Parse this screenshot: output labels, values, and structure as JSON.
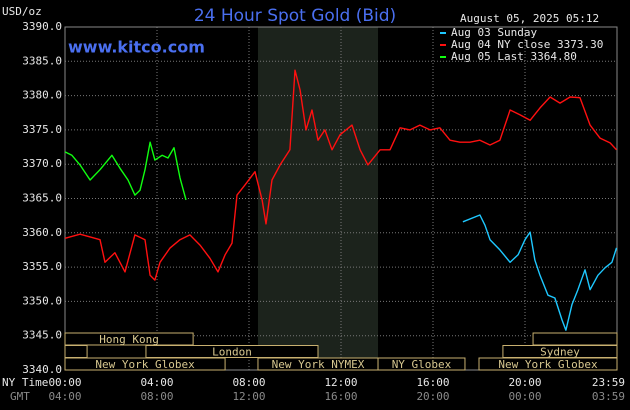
{
  "chart_data": {
    "type": "line",
    "title": "24 Hour Spot Gold (Bid)",
    "timestamp": "August 05, 2025 05:12",
    "watermark": "www.kitco.com",
    "y_label": "USD/oz",
    "x_label": "NY Time",
    "x2_label": "GMT",
    "grid": true,
    "legend": "top-right",
    "xlim": [
      0,
      24
    ],
    "ylim": [
      3340,
      3390
    ],
    "yticks": [
      {
        "value": 3340,
        "label": "3340.0"
      },
      {
        "value": 3345,
        "label": "3345.0"
      },
      {
        "value": 3350,
        "label": "3350.0"
      },
      {
        "value": 3355,
        "label": "3355.0"
      },
      {
        "value": 3360,
        "label": "3360.0"
      },
      {
        "value": 3365,
        "label": "3365.0"
      },
      {
        "value": 3370,
        "label": "3370.0"
      },
      {
        "value": 3375,
        "label": "3375.0"
      },
      {
        "value": 3380,
        "label": "3380.0"
      },
      {
        "value": 3385,
        "label": "3385.0"
      },
      {
        "value": 3390,
        "label": "3390.0"
      }
    ],
    "xticks": [
      {
        "value": 0,
        "label": "00:00"
      },
      {
        "value": 4,
        "label": "04:00"
      },
      {
        "value": 8,
        "label": "08:00"
      },
      {
        "value": 12,
        "label": "12:00"
      },
      {
        "value": 16,
        "label": "16:00"
      },
      {
        "value": 20,
        "label": "20:00"
      },
      {
        "value": 24,
        "label": "23:59"
      }
    ],
    "x2ticks": [
      {
        "value": 0,
        "label": "04:00"
      },
      {
        "value": 4,
        "label": "08:00"
      },
      {
        "value": 8,
        "label": "12:00"
      },
      {
        "value": 12,
        "label": "16:00"
      },
      {
        "value": 16,
        "label": "20:00"
      },
      {
        "value": 20,
        "label": "00:00"
      },
      {
        "value": 24,
        "label": "03:59"
      }
    ],
    "sessions": [
      {
        "label": "Hong Kong",
        "start": 0,
        "end": 5.57
      },
      {
        "label": null,
        "start": 20.35,
        "end": 24
      },
      {
        "label": null,
        "start": 0,
        "end": 0.96
      },
      {
        "label": "London",
        "start": 3.52,
        "end": 11.0
      },
      {
        "label": "Sydney",
        "start": 19.04,
        "end": 24
      },
      {
        "label": "New York Globex",
        "start": 0,
        "end": 6.96
      },
      {
        "label": "New York NYMEX",
        "start": 8.39,
        "end": 13.61
      },
      {
        "label": "NY Globex",
        "start": 13.61,
        "end": 17.39
      },
      {
        "label": "New York Globex",
        "start": 18.0,
        "end": 24
      }
    ],
    "series": [
      {
        "name": "Aug 03 Sunday",
        "color": "#1ec8ff",
        "x": [
          17.3,
          18.04,
          18.26,
          18.48,
          18.91,
          19.35,
          19.7,
          20.0,
          20.22,
          20.43,
          20.65,
          21.0,
          21.3,
          21.61,
          21.78,
          22.04,
          22.3,
          22.61,
          22.83,
          23.17,
          23.48,
          23.78,
          23.98
        ],
        "values": [
          3361.6,
          3362.6,
          3361.1,
          3359.0,
          3357.5,
          3355.7,
          3356.8,
          3359.0,
          3360.1,
          3356.0,
          3353.8,
          3350.9,
          3350.5,
          3347.3,
          3345.8,
          3349.5,
          3351.7,
          3354.6,
          3351.7,
          3353.8,
          3354.9,
          3355.7,
          3357.8
        ]
      },
      {
        "name": "Aug 04 NY close 3373.30",
        "color": "#ff1010",
        "x": [
          0,
          0.65,
          1.09,
          1.52,
          1.74,
          2.17,
          2.61,
          3.04,
          3.48,
          3.7,
          3.91,
          4.13,
          4.57,
          5.0,
          5.43,
          5.87,
          6.3,
          6.65,
          6.96,
          7.26,
          7.48,
          7.83,
          8.26,
          8.57,
          8.74,
          9.0,
          9.35,
          9.78,
          10.0,
          10.22,
          10.48,
          10.74,
          11.0,
          11.3,
          11.61,
          11.96,
          12.48,
          12.83,
          13.17,
          13.7,
          14.13,
          14.57,
          15.0,
          15.43,
          15.87,
          16.3,
          16.74,
          17.17,
          17.61,
          18.04,
          18.48,
          18.91,
          19.35,
          19.78,
          20.22,
          20.65,
          21.09,
          21.52,
          21.96,
          22.39,
          22.83,
          23.26,
          23.7,
          23.98
        ],
        "values": [
          3359.2,
          3359.8,
          3359.4,
          3359.0,
          3355.7,
          3357.1,
          3354.3,
          3359.7,
          3359.0,
          3353.8,
          3353.1,
          3355.7,
          3357.8,
          3359.0,
          3359.7,
          3358.2,
          3356.3,
          3354.3,
          3356.8,
          3358.5,
          3365.5,
          3367.0,
          3368.9,
          3364.8,
          3361.3,
          3367.7,
          3369.9,
          3372.1,
          3383.7,
          3380.8,
          3375.0,
          3377.9,
          3373.5,
          3375.0,
          3372.1,
          3374.3,
          3375.7,
          3372.1,
          3369.9,
          3372.1,
          3372.1,
          3375.3,
          3375.0,
          3375.7,
          3375.0,
          3375.3,
          3373.5,
          3373.2,
          3373.2,
          3373.5,
          3372.8,
          3373.5,
          3377.9,
          3377.2,
          3376.4,
          3378.2,
          3379.8,
          3378.9,
          3379.8,
          3379.7,
          3375.7,
          3373.8,
          3373.1,
          3372.1
        ]
      },
      {
        "name": "Aug 05 Last 3364.80",
        "color": "#10ff10",
        "x": [
          0,
          0.3,
          0.65,
          1.09,
          1.52,
          2.04,
          2.39,
          2.74,
          3.04,
          3.26,
          3.48,
          3.7,
          3.91,
          4.22,
          4.48,
          4.74,
          5.0,
          5.26
        ],
        "values": [
          3371.8,
          3371.3,
          3369.9,
          3367.7,
          3369.2,
          3371.3,
          3369.4,
          3367.7,
          3365.5,
          3366.2,
          3369.2,
          3373.2,
          3370.6,
          3371.3,
          3370.9,
          3372.4,
          3368.0,
          3364.8
        ]
      }
    ]
  }
}
